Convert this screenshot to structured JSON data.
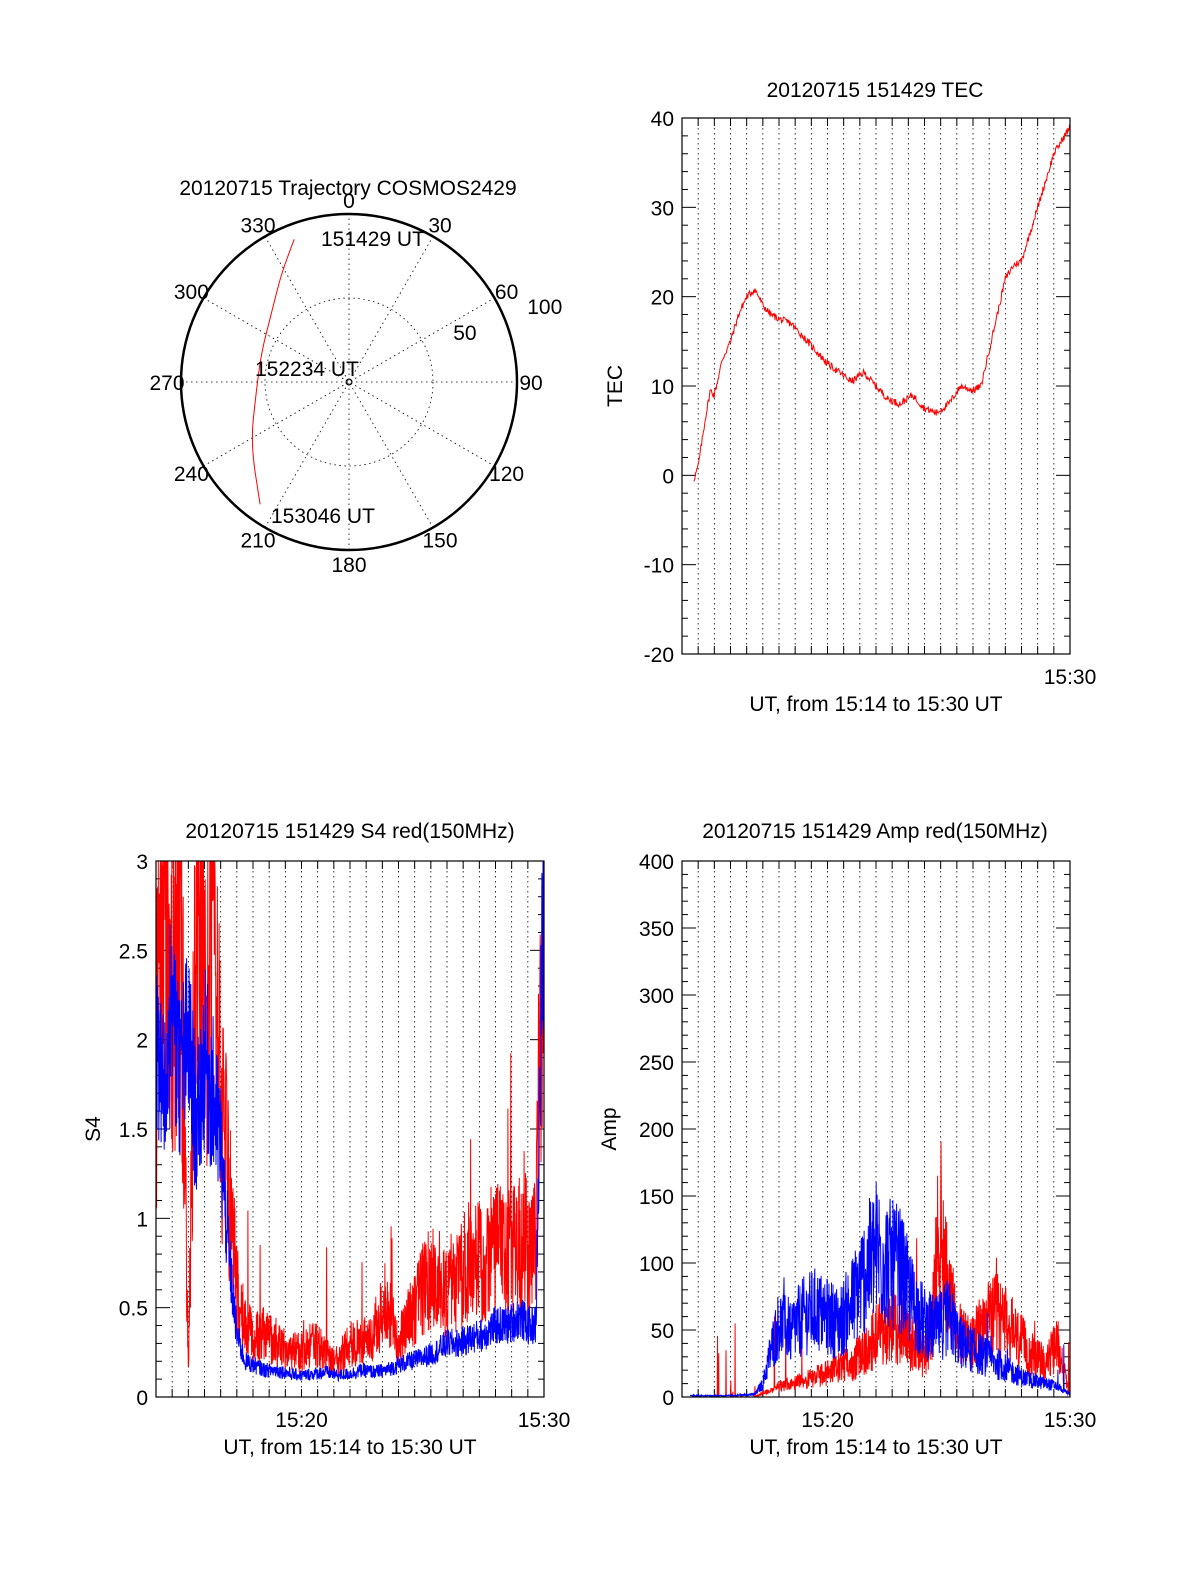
{
  "chart_data": [
    {
      "type": "scatter",
      "title": "20120715 Trajectory COSMOS2429",
      "azimuth_labels": [
        "0",
        "30",
        "60",
        "90",
        "120",
        "150",
        "180",
        "210",
        "240",
        "270",
        "300",
        "330"
      ],
      "radial_labels": [
        "50",
        "100"
      ],
      "grid": true,
      "series_color": "#ff0000",
      "annotations": [
        "151429 UT",
        "152234 UT",
        "153046 UT"
      ],
      "trajectory": [
        {
          "az": 339,
          "r": 91
        },
        {
          "az": 328,
          "r": 76
        },
        {
          "az": 312,
          "r": 62
        },
        {
          "az": 288,
          "r": 55
        },
        {
          "az": 262,
          "r": 56
        },
        {
          "az": 238,
          "r": 69
        },
        {
          "az": 216,
          "r": 90
        }
      ]
    },
    {
      "type": "line",
      "title": "20120715 151429 TEC",
      "xlabel": "UT, from 15:14 to 15:30 UT",
      "ylabel": "TEC",
      "ylim": [
        -20,
        40
      ],
      "yticks": [
        "-20",
        "-10",
        "0",
        "10",
        "20",
        "30",
        "40"
      ],
      "xlim": [
        "15:14",
        "15:30"
      ],
      "xtick_labels": [
        "15:30"
      ],
      "grid": true,
      "series": [
        {
          "color": "#ff0000",
          "x": [
            "15:14:29",
            "15:14:40",
            "15:15:00",
            "15:15:10",
            "15:15:20",
            "15:15:40",
            "15:16:00",
            "15:16:20",
            "15:16:40",
            "15:17:00",
            "15:17:10",
            "15:17:20",
            "15:17:40",
            "15:18:00",
            "15:18:30",
            "15:19:00",
            "15:19:30",
            "15:20:00",
            "15:20:30",
            "15:21:00",
            "15:21:30",
            "15:22:00",
            "15:22:30",
            "15:23:00",
            "15:23:30",
            "15:24:00",
            "15:24:30",
            "15:25:00",
            "15:25:30",
            "15:26:00",
            "15:26:20",
            "15:26:40",
            "15:27:00",
            "15:27:20",
            "15:27:40",
            "15:28:00",
            "15:28:20",
            "15:28:40",
            "15:29:00",
            "15:29:20",
            "15:29:40",
            "15:30:00"
          ],
          "values": [
            -0.5,
            1,
            7,
            9.5,
            9,
            13,
            15,
            18,
            20,
            20.8,
            20,
            19,
            18,
            17.5,
            17,
            15.5,
            14,
            12.5,
            11.5,
            10.5,
            11.5,
            10,
            8.5,
            8,
            9,
            7.5,
            7,
            8,
            10,
            9.5,
            10,
            14,
            18,
            22,
            23.5,
            24,
            27,
            30,
            33,
            36,
            37.5,
            39
          ]
        }
      ]
    },
    {
      "type": "line",
      "title": "20120715 151429 S4 red(150MHz)",
      "xlabel": "UT, from 15:14 to 15:30 UT",
      "ylabel": "S4",
      "ylim": [
        0,
        3
      ],
      "yticks": [
        "0",
        "0.5",
        "1",
        "1.5",
        "2",
        "2.5",
        "3"
      ],
      "xlim": [
        "15:14",
        "15:30"
      ],
      "xtick_labels": [
        "15:20",
        "15:30"
      ],
      "grid": true,
      "series": [
        {
          "color": "#ff0000",
          "x": [
            "15:14:00",
            "15:14:20",
            "15:14:40",
            "15:15:00",
            "15:15:20",
            "15:15:40",
            "15:16:00",
            "15:16:20",
            "15:16:40",
            "15:17:00",
            "15:17:20",
            "15:17:40",
            "15:18:00",
            "15:18:30",
            "15:19:00",
            "15:19:30",
            "15:20:00",
            "15:20:30",
            "15:21:00",
            "15:21:30",
            "15:22:00",
            "15:22:30",
            "15:23:00",
            "15:23:30",
            "15:24:00",
            "15:24:30",
            "15:25:00",
            "15:25:30",
            "15:26:00",
            "15:26:30",
            "15:27:00",
            "15:27:30",
            "15:28:00",
            "15:28:30",
            "15:29:00",
            "15:29:20",
            "15:29:40",
            "15:30:00"
          ],
          "values": [
            1.8,
            3,
            2.2,
            3,
            0.1,
            3,
            2,
            3,
            1.6,
            1.2,
            0.6,
            0.4,
            0.35,
            0.35,
            0.3,
            0.25,
            0.25,
            0.3,
            0.25,
            0.2,
            0.3,
            0.3,
            0.35,
            0.55,
            0.3,
            0.45,
            0.6,
            0.7,
            0.55,
            0.65,
            0.8,
            0.75,
            0.85,
            0.8,
            0.85,
            0.75,
            0.9,
            3
          ]
        },
        {
          "color": "#0000ff",
          "x": [
            "15:14:00",
            "15:14:20",
            "15:14:40",
            "15:15:00",
            "15:15:20",
            "15:15:40",
            "15:16:00",
            "15:16:20",
            "15:16:40",
            "15:17:00",
            "15:17:20",
            "15:17:40",
            "15:18:00",
            "15:18:30",
            "15:19:00",
            "15:19:30",
            "15:20:00",
            "15:20:30",
            "15:21:00",
            "15:21:30",
            "15:22:00",
            "15:22:30",
            "15:23:00",
            "15:23:30",
            "15:24:00",
            "15:24:30",
            "15:25:00",
            "15:25:30",
            "15:26:00",
            "15:26:30",
            "15:27:00",
            "15:27:30",
            "15:28:00",
            "15:28:30",
            "15:29:00",
            "15:29:20",
            "15:29:40",
            "15:30:00"
          ],
          "values": [
            1.9,
            1.7,
            2.2,
            1.8,
            2,
            1.5,
            1.9,
            1.7,
            1.4,
            0.8,
            0.35,
            0.2,
            0.18,
            0.15,
            0.15,
            0.13,
            0.12,
            0.13,
            0.14,
            0.12,
            0.13,
            0.15,
            0.14,
            0.15,
            0.18,
            0.2,
            0.22,
            0.25,
            0.3,
            0.3,
            0.33,
            0.35,
            0.4,
            0.4,
            0.45,
            0.4,
            0.4,
            3
          ]
        }
      ]
    },
    {
      "type": "line",
      "title": "20120715 151429 Amp red(150MHz)",
      "xlabel": "UT, from 15:14 to 15:30 UT",
      "ylabel": "Amp",
      "ylim": [
        0,
        400
      ],
      "yticks": [
        "0",
        "50",
        "100",
        "150",
        "200",
        "250",
        "300",
        "350",
        "400"
      ],
      "xlim": [
        "15:14",
        "15:30"
      ],
      "xtick_labels": [
        "15:20",
        "15:30"
      ],
      "grid": true,
      "series": [
        {
          "color": "#ff0000",
          "x": [
            "15:14:20",
            "15:15:00",
            "15:16:00",
            "15:17:00",
            "15:17:20",
            "15:17:40",
            "15:18:00",
            "15:18:30",
            "15:19:00",
            "15:19:30",
            "15:20:00",
            "15:20:30",
            "15:21:00",
            "15:21:30",
            "15:22:00",
            "15:22:30",
            "15:23:00",
            "15:23:30",
            "15:24:00",
            "15:24:20",
            "15:24:40",
            "15:25:00",
            "15:25:30",
            "15:26:00",
            "15:26:30",
            "15:27:00",
            "15:27:30",
            "15:28:00",
            "15:28:30",
            "15:29:00",
            "15:29:30",
            "15:30:00"
          ],
          "values": [
            0,
            0,
            0,
            0,
            3,
            5,
            8,
            10,
            12,
            15,
            18,
            22,
            25,
            35,
            45,
            55,
            50,
            40,
            30,
            60,
            140,
            70,
            45,
            40,
            55,
            60,
            50,
            40,
            30,
            25,
            40,
            0
          ]
        },
        {
          "color": "#0000ff",
          "x": [
            "15:14:20",
            "15:15:00",
            "15:16:00",
            "15:17:00",
            "15:17:20",
            "15:17:40",
            "15:18:00",
            "15:18:30",
            "15:19:00",
            "15:19:30",
            "15:20:00",
            "15:20:30",
            "15:21:00",
            "15:21:30",
            "15:22:00",
            "15:22:30",
            "15:23:00",
            "15:23:30",
            "15:24:00",
            "15:24:30",
            "15:25:00",
            "15:25:30",
            "15:26:00",
            "15:26:30",
            "15:27:00",
            "15:27:30",
            "15:28:00",
            "15:28:30",
            "15:29:00",
            "15:29:30",
            "15:30:00"
          ],
          "values": [
            1,
            1,
            1,
            2,
            10,
            35,
            55,
            50,
            60,
            65,
            60,
            55,
            70,
            90,
            110,
            100,
            95,
            70,
            55,
            50,
            60,
            40,
            35,
            30,
            25,
            20,
            15,
            12,
            10,
            8,
            2
          ]
        }
      ]
    }
  ]
}
